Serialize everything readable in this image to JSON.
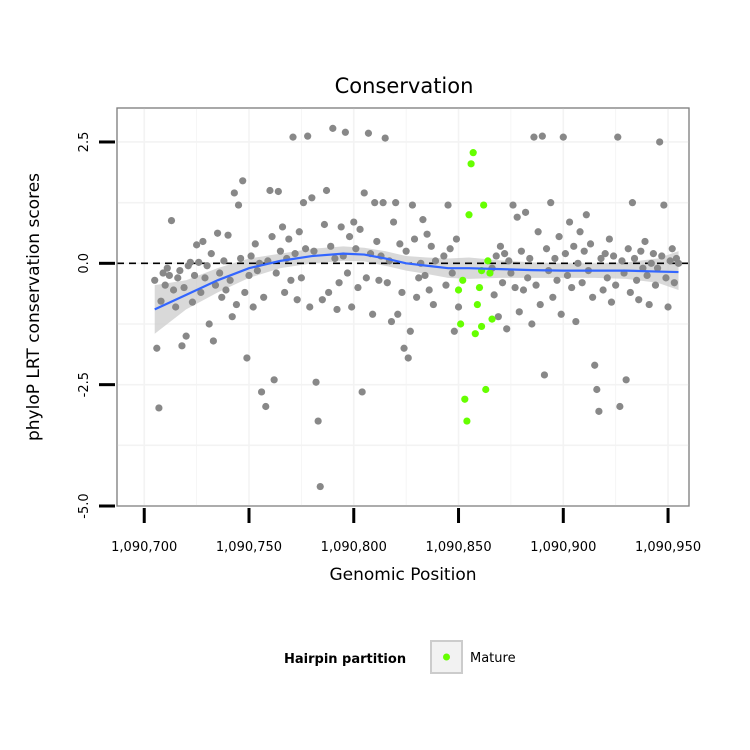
{
  "chart_data": {
    "type": "scatter",
    "title": "Conservation",
    "xlabel": "Genomic Position",
    "ylabel": "phyloP LRT conservation scores",
    "xlim": [
      1090687,
      1090960
    ],
    "ylim": [
      -5.0,
      3.2
    ],
    "x_ticks": [
      1090700,
      1090750,
      1090800,
      1090850,
      1090900,
      1090950
    ],
    "x_tick_labels": [
      "1,090,700",
      "1,090,750",
      "1,090,800",
      "1,090,850",
      "1,090,900",
      "1,090,950"
    ],
    "y_ticks": [
      -5.0,
      -2.5,
      0.0,
      2.5
    ],
    "y_tick_labels": [
      "-5.0",
      "-2.5",
      "0.0",
      "2.5"
    ],
    "grid": true,
    "reference_line": {
      "y": 0.0,
      "style": "dashed"
    },
    "legend": {
      "title": "Hairpin partition",
      "position": "bottom",
      "entries": [
        "Mature"
      ]
    },
    "series": [
      {
        "name": "",
        "color": "#888888",
        "points": [
          [
            1090705,
            -0.35
          ],
          [
            1090706,
            -1.75
          ],
          [
            1090707,
            -2.98
          ],
          [
            1090708,
            -0.78
          ],
          [
            1090709,
            -0.2
          ],
          [
            1090710,
            -0.45
          ],
          [
            1090711,
            -0.1
          ],
          [
            1090712,
            -0.25
          ],
          [
            1090713,
            0.88
          ],
          [
            1090714,
            -0.55
          ],
          [
            1090715,
            -0.9
          ],
          [
            1090716,
            -0.3
          ],
          [
            1090717,
            -0.15
          ],
          [
            1090718,
            -1.7
          ],
          [
            1090719,
            -0.5
          ],
          [
            1090720,
            -1.5
          ],
          [
            1090721,
            -0.05
          ],
          [
            1090722,
            0.02
          ],
          [
            1090723,
            -0.8
          ],
          [
            1090724,
            -0.25
          ],
          [
            1090725,
            0.38
          ],
          [
            1090726,
            0.02
          ],
          [
            1090727,
            -0.6
          ],
          [
            1090728,
            0.45
          ],
          [
            1090729,
            -0.3
          ],
          [
            1090730,
            -0.05
          ],
          [
            1090731,
            -1.25
          ],
          [
            1090732,
            0.2
          ],
          [
            1090733,
            -1.6
          ],
          [
            1090734,
            -0.45
          ],
          [
            1090735,
            0.62
          ],
          [
            1090736,
            -0.2
          ],
          [
            1090737,
            -0.7
          ],
          [
            1090738,
            0.05
          ],
          [
            1090739,
            -0.55
          ],
          [
            1090740,
            0.58
          ],
          [
            1090741,
            -0.35
          ],
          [
            1090742,
            -1.1
          ],
          [
            1090743,
            1.45
          ],
          [
            1090744,
            -0.85
          ],
          [
            1090745,
            1.2
          ],
          [
            1090746,
            0.1
          ],
          [
            1090747,
            1.7
          ],
          [
            1090748,
            -0.6
          ],
          [
            1090749,
            -1.95
          ],
          [
            1090750,
            -0.25
          ],
          [
            1090751,
            0.15
          ],
          [
            1090752,
            -0.9
          ],
          [
            1090753,
            0.4
          ],
          [
            1090754,
            -0.15
          ],
          [
            1090755,
            0.0
          ],
          [
            1090756,
            -2.65
          ],
          [
            1090757,
            -0.7
          ],
          [
            1090758,
            -2.95
          ],
          [
            1090759,
            0.05
          ],
          [
            1090760,
            1.5
          ],
          [
            1090761,
            0.55
          ],
          [
            1090762,
            -2.4
          ],
          [
            1090763,
            -0.2
          ],
          [
            1090764,
            1.48
          ],
          [
            1090765,
            0.25
          ],
          [
            1090766,
            0.75
          ],
          [
            1090767,
            -0.6
          ],
          [
            1090768,
            0.1
          ],
          [
            1090769,
            0.5
          ],
          [
            1090770,
            -0.35
          ],
          [
            1090771,
            2.6
          ],
          [
            1090772,
            0.2
          ],
          [
            1090773,
            -0.75
          ],
          [
            1090774,
            0.65
          ],
          [
            1090775,
            -0.3
          ],
          [
            1090776,
            1.25
          ],
          [
            1090777,
            0.3
          ],
          [
            1090778,
            2.62
          ],
          [
            1090779,
            -0.9
          ],
          [
            1090780,
            1.35
          ],
          [
            1090781,
            0.25
          ],
          [
            1090782,
            -2.45
          ],
          [
            1090783,
            -3.25
          ],
          [
            1090784,
            -4.6
          ],
          [
            1090785,
            -0.75
          ],
          [
            1090786,
            0.8
          ],
          [
            1090787,
            1.5
          ],
          [
            1090788,
            -0.6
          ],
          [
            1090789,
            0.35
          ],
          [
            1090790,
            2.78
          ],
          [
            1090791,
            0.1
          ],
          [
            1090792,
            -0.95
          ],
          [
            1090793,
            -0.4
          ],
          [
            1090794,
            0.75
          ],
          [
            1090795,
            0.15
          ],
          [
            1090796,
            2.7
          ],
          [
            1090797,
            -0.2
          ],
          [
            1090798,
            0.55
          ],
          [
            1090799,
            -0.9
          ],
          [
            1090800,
            0.85
          ],
          [
            1090801,
            0.3
          ],
          [
            1090802,
            -0.5
          ],
          [
            1090803,
            0.7
          ],
          [
            1090804,
            -2.65
          ],
          [
            1090805,
            1.45
          ],
          [
            1090806,
            -0.3
          ],
          [
            1090807,
            2.68
          ],
          [
            1090808,
            0.2
          ],
          [
            1090809,
            -1.05
          ],
          [
            1090810,
            1.25
          ],
          [
            1090811,
            0.45
          ],
          [
            1090812,
            -0.35
          ],
          [
            1090813,
            0.15
          ],
          [
            1090814,
            1.25
          ],
          [
            1090815,
            2.58
          ],
          [
            1090816,
            -0.4
          ],
          [
            1090817,
            0.05
          ],
          [
            1090818,
            -1.2
          ],
          [
            1090819,
            0.85
          ],
          [
            1090820,
            1.25
          ],
          [
            1090821,
            -1.05
          ],
          [
            1090822,
            0.4
          ],
          [
            1090823,
            -0.6
          ],
          [
            1090824,
            -1.75
          ],
          [
            1090825,
            0.25
          ],
          [
            1090826,
            -1.95
          ],
          [
            1090827,
            -1.4
          ],
          [
            1090828,
            1.2
          ],
          [
            1090829,
            0.5
          ],
          [
            1090830,
            -0.7
          ],
          [
            1090831,
            -0.3
          ],
          [
            1090832,
            0.0
          ],
          [
            1090833,
            0.9
          ],
          [
            1090834,
            -0.25
          ],
          [
            1090835,
            0.6
          ],
          [
            1090836,
            -0.55
          ],
          [
            1090837,
            0.35
          ],
          [
            1090838,
            -0.85
          ],
          [
            1090839,
            0.05
          ]
        ]
      },
      {
        "name": "",
        "color": "#888888",
        "points": [
          [
            1090866,
            -0.1
          ],
          [
            1090867,
            -0.65
          ],
          [
            1090868,
            0.15
          ],
          [
            1090869,
            -1.1
          ],
          [
            1090870,
            0.35
          ],
          [
            1090871,
            -0.4
          ],
          [
            1090872,
            0.2
          ],
          [
            1090873,
            -1.35
          ],
          [
            1090874,
            0.05
          ],
          [
            1090875,
            -0.2
          ],
          [
            1090876,
            1.2
          ],
          [
            1090877,
            -0.5
          ],
          [
            1090878,
            0.95
          ],
          [
            1090879,
            -1.0
          ],
          [
            1090880,
            0.25
          ],
          [
            1090881,
            -0.55
          ],
          [
            1090882,
            1.05
          ],
          [
            1090883,
            -0.3
          ],
          [
            1090884,
            0.1
          ],
          [
            1090885,
            -1.25
          ],
          [
            1090886,
            2.6
          ],
          [
            1090887,
            -0.45
          ],
          [
            1090888,
            0.65
          ],
          [
            1090889,
            -0.85
          ],
          [
            1090890,
            2.62
          ],
          [
            1090891,
            -2.3
          ],
          [
            1090892,
            0.3
          ],
          [
            1090893,
            -0.15
          ],
          [
            1090894,
            1.25
          ],
          [
            1090895,
            -0.7
          ],
          [
            1090896,
            0.1
          ],
          [
            1090897,
            -0.35
          ],
          [
            1090898,
            0.55
          ],
          [
            1090899,
            -1.05
          ],
          [
            1090900,
            2.6
          ],
          [
            1090901,
            0.2
          ],
          [
            1090902,
            -0.25
          ],
          [
            1090903,
            0.85
          ],
          [
            1090904,
            -0.5
          ],
          [
            1090905,
            0.35
          ],
          [
            1090906,
            -1.2
          ],
          [
            1090907,
            0.0
          ],
          [
            1090908,
            0.65
          ],
          [
            1090909,
            -0.4
          ],
          [
            1090910,
            0.25
          ],
          [
            1090911,
            1.0
          ],
          [
            1090912,
            -0.15
          ],
          [
            1090913,
            0.4
          ],
          [
            1090914,
            -0.7
          ],
          [
            1090915,
            -2.1
          ],
          [
            1090916,
            -2.6
          ],
          [
            1090917,
            -3.05
          ],
          [
            1090918,
            0.1
          ],
          [
            1090919,
            -0.55
          ],
          [
            1090920,
            0.2
          ],
          [
            1090921,
            -0.3
          ],
          [
            1090922,
            0.5
          ],
          [
            1090923,
            -0.8
          ],
          [
            1090924,
            0.15
          ],
          [
            1090925,
            -0.45
          ],
          [
            1090926,
            2.6
          ],
          [
            1090927,
            -2.95
          ],
          [
            1090928,
            0.05
          ],
          [
            1090929,
            -0.2
          ],
          [
            1090930,
            -2.4
          ],
          [
            1090931,
            0.3
          ],
          [
            1090932,
            -0.6
          ],
          [
            1090933,
            1.25
          ],
          [
            1090934,
            0.1
          ],
          [
            1090935,
            -0.35
          ],
          [
            1090936,
            -0.75
          ],
          [
            1090937,
            0.25
          ],
          [
            1090938,
            -0.1
          ],
          [
            1090939,
            0.45
          ],
          [
            1090940,
            -0.25
          ],
          [
            1090941,
            -0.85
          ],
          [
            1090942,
            0.0
          ],
          [
            1090943,
            0.2
          ],
          [
            1090944,
            -0.45
          ],
          [
            1090945,
            -0.1
          ],
          [
            1090946,
            2.5
          ],
          [
            1090947,
            0.15
          ],
          [
            1090948,
            1.2
          ],
          [
            1090949,
            -0.3
          ],
          [
            1090950,
            -0.9
          ],
          [
            1090951,
            0.05
          ],
          [
            1090952,
            0.3
          ],
          [
            1090953,
            -0.4
          ],
          [
            1090954,
            0.1
          ],
          [
            1090955,
            0.0
          ],
          [
            1090843,
            0.15
          ],
          [
            1090844,
            -0.45
          ],
          [
            1090845,
            1.2
          ],
          [
            1090846,
            0.3
          ],
          [
            1090847,
            -0.2
          ],
          [
            1090848,
            -1.4
          ],
          [
            1090849,
            0.5
          ],
          [
            1090850,
            -0.9
          ]
        ]
      },
      {
        "name": "Mature",
        "color": "#66ff00",
        "points": [
          [
            1090850,
            -0.55
          ],
          [
            1090851,
            -1.25
          ],
          [
            1090852,
            -0.35
          ],
          [
            1090853,
            -2.8
          ],
          [
            1090854,
            -3.25
          ],
          [
            1090855,
            1.0
          ],
          [
            1090856,
            2.05
          ],
          [
            1090857,
            2.28
          ],
          [
            1090858,
            -1.45
          ],
          [
            1090859,
            -0.85
          ],
          [
            1090860,
            -0.5
          ],
          [
            1090861,
            -0.15
          ],
          [
            1090862,
            1.2
          ],
          [
            1090863,
            -2.6
          ],
          [
            1090864,
            0.05
          ],
          [
            1090865,
            -0.2
          ],
          [
            1090866,
            -1.15
          ],
          [
            1090861,
            -1.3
          ]
        ]
      }
    ],
    "smooth": {
      "color": "#3366ff",
      "band_color": "#cccccc",
      "x": [
        1090705,
        1090720,
        1090735,
        1090750,
        1090765,
        1090780,
        1090795,
        1090805,
        1090815,
        1090825,
        1090835,
        1090845,
        1090855,
        1090870,
        1090885,
        1090900,
        1090915,
        1090930,
        1090945,
        1090955
      ],
      "y": [
        -0.95,
        -0.65,
        -0.35,
        -0.1,
        0.05,
        0.15,
        0.2,
        0.18,
        0.1,
        0.0,
        -0.05,
        -0.1,
        -0.1,
        -0.12,
        -0.14,
        -0.15,
        -0.15,
        -0.15,
        -0.17,
        -0.18
      ],
      "lower": [
        -1.45,
        -0.95,
        -0.6,
        -0.3,
        -0.1,
        0.0,
        0.05,
        0.04,
        -0.05,
        -0.15,
        -0.22,
        -0.3,
        -0.32,
        -0.3,
        -0.3,
        -0.3,
        -0.3,
        -0.32,
        -0.4,
        -0.55
      ],
      "upper": [
        -0.45,
        -0.35,
        -0.1,
        0.1,
        0.2,
        0.3,
        0.35,
        0.32,
        0.25,
        0.15,
        0.12,
        0.1,
        0.12,
        0.06,
        0.02,
        0.0,
        0.0,
        0.02,
        0.1,
        0.25
      ]
    }
  }
}
